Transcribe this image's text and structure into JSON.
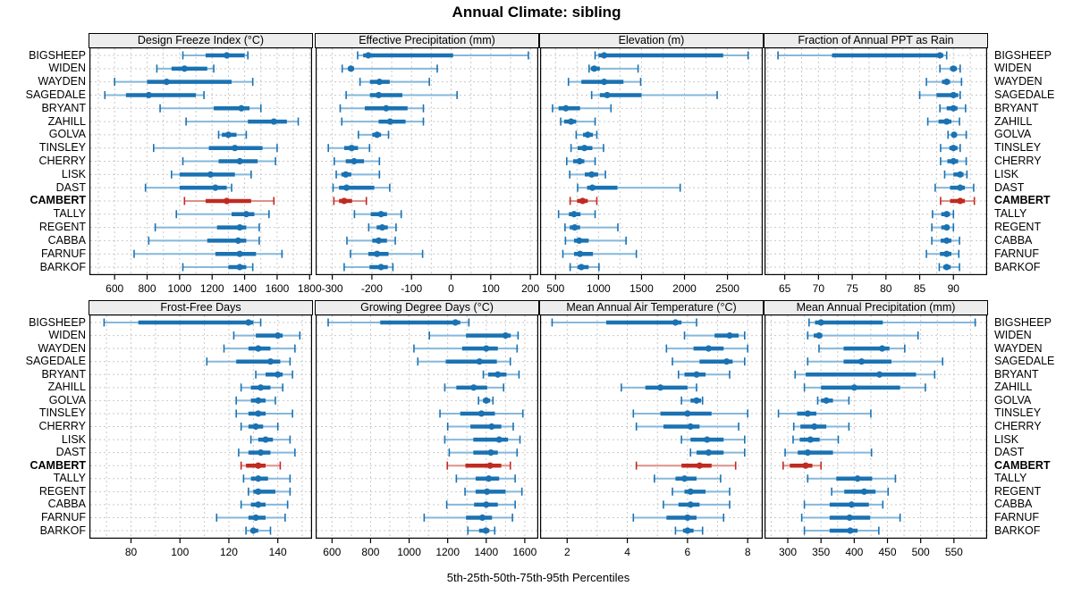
{
  "title": "Annual Climate: sibling",
  "caption": "5th-25th-50th-75th-95th Percentiles",
  "colors": {
    "normal": "#1a72b2",
    "normal_light": "#85b8dc",
    "highlight": "#bf2b22",
    "highlight_light": "#dd9089",
    "grid": "#c9c9c9",
    "strip_bg": "#ededed",
    "border": "#000000"
  },
  "chart_data": {
    "type": "dotplot-percentiles",
    "title": "Annual Climate: sibling",
    "caption": "5th-25th-50th-75th-95th Percentiles",
    "percentiles": [
      5,
      25,
      50,
      75,
      95
    ],
    "highlight": "CAMBERT",
    "stations": [
      "BIGSHEEP",
      "WIDEN",
      "WAYDEN",
      "SAGEDALE",
      "BRYANT",
      "ZAHILL",
      "GOLVA",
      "TINSLEY",
      "CHERRY",
      "LISK",
      "DAST",
      "CAMBERT",
      "TALLY",
      "REGENT",
      "CABBA",
      "FARNUF",
      "BARKOF"
    ],
    "panels": [
      {
        "title": "Design Freeze Index (°C)",
        "row": 0,
        "col": 0,
        "xlim": [
          445,
          1815
        ],
        "ticks": [
          600,
          800,
          1000,
          1200,
          1400,
          1600,
          1800
        ],
        "grid_step": 100,
        "values": [
          [
            1020,
            1160,
            1290,
            1400,
            1420
          ],
          [
            860,
            950,
            1030,
            1170,
            1210
          ],
          [
            600,
            800,
            920,
            1320,
            1450
          ],
          [
            540,
            670,
            810,
            1100,
            1150
          ],
          [
            880,
            1210,
            1380,
            1430,
            1500
          ],
          [
            1040,
            1420,
            1580,
            1660,
            1730
          ],
          [
            1240,
            1260,
            1300,
            1350,
            1410
          ],
          [
            840,
            1180,
            1340,
            1510,
            1600
          ],
          [
            1020,
            1240,
            1370,
            1480,
            1590
          ],
          [
            950,
            1000,
            1190,
            1340,
            1440
          ],
          [
            790,
            1000,
            1220,
            1290,
            1320
          ],
          [
            1030,
            1160,
            1290,
            1440,
            1580
          ],
          [
            980,
            1320,
            1410,
            1460,
            1550
          ],
          [
            850,
            1230,
            1370,
            1410,
            1490
          ],
          [
            810,
            1170,
            1360,
            1410,
            1490
          ],
          [
            720,
            1220,
            1370,
            1470,
            1630
          ],
          [
            1020,
            1300,
            1370,
            1410,
            1450
          ]
        ]
      },
      {
        "title": "Effective Precipitation (mm)",
        "row": 0,
        "col": 1,
        "xlim": [
          -342,
          220
        ],
        "ticks": [
          -300,
          -200,
          -100,
          0,
          100,
          200
        ],
        "grid_step": 50,
        "values": [
          [
            -236,
            -222,
            -209,
            5,
            195
          ],
          [
            -275,
            -260,
            -253,
            -245,
            -35
          ],
          [
            -230,
            -205,
            -181,
            -155,
            -55
          ],
          [
            -265,
            -205,
            -183,
            -123,
            15
          ],
          [
            -280,
            -218,
            -164,
            -110,
            -70
          ],
          [
            -276,
            -183,
            -154,
            -115,
            -70
          ],
          [
            -234,
            -199,
            -187,
            -177,
            -158
          ],
          [
            -310,
            -270,
            -251,
            -235,
            -206
          ],
          [
            -295,
            -266,
            -245,
            -220,
            -181
          ],
          [
            -290,
            -277,
            -266,
            -252,
            -181
          ],
          [
            -298,
            -283,
            -264,
            -194,
            -155
          ],
          [
            -296,
            -283,
            -270,
            -250,
            -214
          ],
          [
            -244,
            -203,
            -177,
            -162,
            -126
          ],
          [
            -208,
            -188,
            -174,
            -160,
            -139
          ],
          [
            -263,
            -199,
            -183,
            -162,
            -141
          ],
          [
            -254,
            -209,
            -187,
            -158,
            -72
          ],
          [
            -270,
            -206,
            -177,
            -160,
            -147
          ]
        ]
      },
      {
        "title": "Elevation (m)",
        "row": 0,
        "col": 2,
        "xlim": [
          320,
          2910
        ],
        "ticks": [
          500,
          1000,
          1500,
          2000,
          2500
        ],
        "grid_step": 250,
        "values": [
          [
            960,
            1000,
            1065,
            2450,
            2740
          ],
          [
            890,
            910,
            950,
            1015,
            1460
          ],
          [
            650,
            800,
            1065,
            1290,
            1490
          ],
          [
            920,
            1015,
            1100,
            1500,
            2380
          ],
          [
            465,
            535,
            620,
            785,
            1145
          ],
          [
            560,
            600,
            680,
            740,
            960
          ],
          [
            740,
            820,
            875,
            935,
            980
          ],
          [
            680,
            757,
            836,
            928,
            1058
          ],
          [
            630,
            705,
            780,
            835,
            960
          ],
          [
            665,
            840,
            920,
            995,
            1080
          ],
          [
            757,
            867,
            928,
            1220,
            1950
          ],
          [
            670,
            750,
            815,
            875,
            980
          ],
          [
            535,
            655,
            715,
            790,
            960
          ],
          [
            610,
            665,
            723,
            785,
            1225
          ],
          [
            615,
            715,
            775,
            885,
            1320
          ],
          [
            585,
            715,
            785,
            935,
            1440
          ],
          [
            670,
            755,
            800,
            885,
            1005
          ]
        ]
      },
      {
        "title": "Fraction of Annual PPT as Rain",
        "row": 0,
        "col": 3,
        "xlim": [
          62,
          95
        ],
        "ticks": [
          65,
          70,
          75,
          80,
          85,
          90
        ],
        "grid_step": 2.5,
        "values": [
          [
            64,
            72,
            88,
            88.5,
            89
          ],
          [
            88,
            89.5,
            90,
            90.5,
            91
          ],
          [
            86,
            88.3,
            89,
            89.5,
            91.2
          ],
          [
            85,
            87.5,
            90,
            90.7,
            91
          ],
          [
            88,
            89,
            90,
            90.6,
            91.8
          ],
          [
            86.2,
            87.8,
            89,
            89.7,
            90.9
          ],
          [
            89.2,
            89.7,
            90.1,
            90.5,
            91.9
          ],
          [
            88.1,
            89.4,
            90,
            90.6,
            91
          ],
          [
            88.1,
            89.1,
            90,
            90.7,
            91.9
          ],
          [
            88.7,
            90,
            91,
            91.5,
            92
          ],
          [
            87.3,
            89.5,
            91,
            91.7,
            93
          ],
          [
            88.1,
            89.5,
            91,
            91.7,
            93.1
          ],
          [
            86.9,
            88.2,
            89,
            89.5,
            90
          ],
          [
            86.8,
            88.2,
            89,
            89.4,
            90
          ],
          [
            86.8,
            88.1,
            89,
            89.7,
            90.9
          ],
          [
            86,
            88,
            89,
            89.7,
            90.8
          ],
          [
            87.9,
            88.5,
            89,
            89.6,
            90.9
          ]
        ]
      },
      {
        "title": "Frost-Free Days",
        "row": 1,
        "col": 0,
        "xlim": [
          63,
          154
        ],
        "ticks": [
          80,
          100,
          120,
          140
        ],
        "grid_step": 10,
        "values": [
          [
            69,
            83,
            128,
            130,
            133
          ],
          [
            122,
            131,
            140,
            142,
            149
          ],
          [
            118,
            128,
            132,
            137,
            147
          ],
          [
            111,
            123,
            137,
            141,
            145
          ],
          [
            131,
            135,
            140,
            142,
            146
          ],
          [
            125,
            129,
            133,
            137,
            142
          ],
          [
            123,
            129,
            132,
            135,
            139
          ],
          [
            123,
            128,
            132,
            135,
            146
          ],
          [
            125,
            128,
            131,
            134,
            140
          ],
          [
            129,
            132,
            135,
            138,
            145
          ],
          [
            124,
            128,
            133,
            137,
            147
          ],
          [
            125,
            127,
            132,
            135,
            141
          ],
          [
            126,
            129,
            132,
            136,
            145
          ],
          [
            128,
            130,
            132,
            139,
            145
          ],
          [
            125,
            129,
            132,
            135,
            144
          ],
          [
            115,
            128,
            131,
            135,
            143
          ],
          [
            127,
            129,
            130,
            132,
            137
          ]
        ]
      },
      {
        "title": "Growing Degree Days (°C)",
        "row": 1,
        "col": 1,
        "xlim": [
          515,
          1670
        ],
        "ticks": [
          600,
          800,
          1000,
          1200,
          1400,
          1600
        ],
        "grid_step": 100,
        "values": [
          [
            580,
            850,
            1240,
            1265,
            1310
          ],
          [
            1105,
            1295,
            1500,
            1527,
            1565
          ],
          [
            1025,
            1275,
            1400,
            1460,
            1560
          ],
          [
            1045,
            1190,
            1365,
            1455,
            1525
          ],
          [
            1385,
            1410,
            1460,
            1505,
            1570
          ],
          [
            1185,
            1245,
            1335,
            1405,
            1490
          ],
          [
            1360,
            1383,
            1400,
            1420,
            1435
          ],
          [
            1160,
            1265,
            1375,
            1445,
            1590
          ],
          [
            1200,
            1318,
            1428,
            1478,
            1540
          ],
          [
            1185,
            1333,
            1467,
            1513,
            1575
          ],
          [
            1208,
            1333,
            1424,
            1460,
            1560
          ],
          [
            1198,
            1292,
            1420,
            1478,
            1525
          ],
          [
            1245,
            1345,
            1413,
            1467,
            1550
          ],
          [
            1290,
            1345,
            1404,
            1500,
            1585
          ],
          [
            1195,
            1337,
            1400,
            1460,
            1550
          ],
          [
            1078,
            1295,
            1380,
            1430,
            1536
          ],
          [
            1305,
            1363,
            1398,
            1416,
            1444
          ]
        ]
      },
      {
        "title": "Mean Annual Air Temperature (°C)",
        "row": 1,
        "col": 2,
        "xlim": [
          1.1,
          8.5
        ],
        "ticks": [
          2,
          4,
          6,
          8
        ],
        "grid_step": 1,
        "values": [
          [
            1.5,
            3.3,
            5.6,
            5.8,
            6.3
          ],
          [
            5.9,
            6.9,
            7.4,
            7.7,
            7.9
          ],
          [
            5.3,
            6.2,
            6.7,
            7.2,
            8.0
          ],
          [
            5.5,
            6.4,
            7.3,
            7.5,
            7.9
          ],
          [
            5.7,
            5.9,
            6.3,
            6.6,
            7.4
          ],
          [
            3.8,
            4.6,
            5.1,
            6.0,
            6.3
          ],
          [
            5.8,
            6.1,
            6.3,
            6.45,
            6.5
          ],
          [
            4.2,
            5.1,
            6.0,
            6.8,
            8.0
          ],
          [
            4.3,
            5.2,
            6.1,
            6.4,
            7.7
          ],
          [
            5.8,
            6.1,
            6.65,
            7.2,
            7.9
          ],
          [
            6.1,
            6.3,
            6.7,
            7.2,
            7.9
          ],
          [
            4.3,
            5.8,
            6.4,
            6.8,
            7.6
          ],
          [
            4.9,
            5.6,
            5.9,
            6.3,
            7.1
          ],
          [
            5.5,
            5.9,
            6.1,
            6.6,
            7.4
          ],
          [
            5.2,
            5.7,
            6.1,
            6.4,
            7.4
          ],
          [
            4.2,
            5.3,
            6.0,
            6.3,
            7.2
          ],
          [
            5.6,
            5.85,
            6.0,
            6.2,
            6.5
          ]
        ]
      },
      {
        "title": "Mean Annual Precipitation (mm)",
        "row": 1,
        "col": 3,
        "xlim": [
          265,
          600
        ],
        "ticks": [
          300,
          350,
          400,
          450,
          500,
          550
        ],
        "grid_step": 25,
        "values": [
          [
            332,
            341,
            350,
            443,
            582
          ],
          [
            330,
            339,
            347,
            352,
            496
          ],
          [
            347,
            384,
            442,
            453,
            476
          ],
          [
            330,
            384,
            411,
            456,
            533
          ],
          [
            311,
            327,
            438,
            493,
            521
          ],
          [
            325,
            350,
            400,
            469,
            507
          ],
          [
            345,
            350,
            358,
            368,
            392
          ],
          [
            286,
            314,
            330,
            343,
            425
          ],
          [
            309,
            319,
            340,
            358,
            392
          ],
          [
            308,
            318,
            334,
            348,
            376
          ],
          [
            296,
            315,
            330,
            368,
            426
          ],
          [
            293,
            303,
            327,
            337,
            350
          ],
          [
            330,
            373,
            405,
            427,
            462
          ],
          [
            366,
            385,
            415,
            432,
            451
          ],
          [
            325,
            363,
            396,
            422,
            443
          ],
          [
            321,
            363,
            393,
            424,
            469
          ],
          [
            325,
            363,
            394,
            405,
            437
          ]
        ]
      }
    ]
  }
}
